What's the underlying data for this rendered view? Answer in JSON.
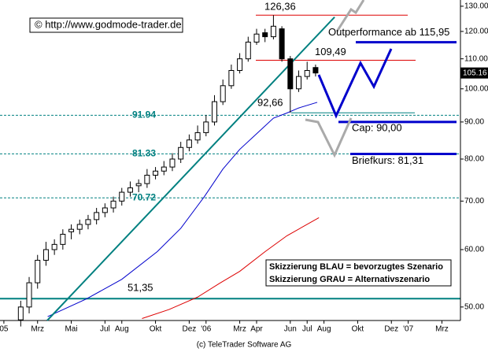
{
  "chart_data": {
    "type": "candlestick",
    "log_scale": true,
    "credit": "© http://www.godmode-trader.de",
    "footer": "(c) TeleTrader Software AG",
    "xlim": [
      -0.23,
      27.1
    ],
    "ylim": [
      47.9,
      132.6
    ],
    "xticks": [
      {
        "value": 0,
        "label": "05"
      },
      {
        "value": 2,
        "label": "Mrz"
      },
      {
        "value": 4,
        "label": "Mai"
      },
      {
        "value": 6,
        "label": "Jul"
      },
      {
        "value": 7,
        "label": "Aug"
      },
      {
        "value": 9,
        "label": "Okt"
      },
      {
        "value": 11,
        "label": "Dez"
      },
      {
        "value": 12,
        "label": "'06"
      },
      {
        "value": 14,
        "label": "Mrz"
      },
      {
        "value": 15,
        "label": "Apr"
      },
      {
        "value": 17,
        "label": "Jun"
      },
      {
        "value": 18,
        "label": "Jul"
      },
      {
        "value": 19,
        "label": "Aug"
      },
      {
        "value": 21,
        "label": "Okt"
      },
      {
        "value": 23,
        "label": "Dez"
      },
      {
        "value": 24,
        "label": "'07"
      },
      {
        "value": 26,
        "label": "Mrz"
      }
    ],
    "yticks": [
      {
        "value": 50,
        "label": "50.00"
      },
      {
        "value": 60,
        "label": "60.00"
      },
      {
        "value": 70,
        "label": "70.00"
      },
      {
        "value": 80,
        "label": "80.00"
      },
      {
        "value": 90,
        "label": "90.00"
      },
      {
        "value": 100,
        "label": "100.00"
      },
      {
        "value": 110,
        "label": "110.00"
      },
      {
        "value": 120,
        "label": "120.00"
      },
      {
        "value": 130,
        "label": "130.00"
      }
    ],
    "x": [
      1,
      1.5,
      2,
      2.5,
      3,
      3.5,
      4,
      4.5,
      5,
      5.5,
      6,
      6.5,
      7,
      7.5,
      8,
      8.5,
      9,
      9.5,
      10,
      10.5,
      11,
      11.5,
      12,
      12.5,
      13,
      13.5,
      14,
      14.5,
      15,
      15.5,
      16,
      16.5,
      17,
      17.5,
      18,
      18.5
    ],
    "open": [
      48,
      50,
      54,
      58,
      60,
      61,
      63.5,
      64,
      65,
      66,
      67.5,
      68.5,
      70,
      72,
      73.5,
      74,
      76,
      77,
      78,
      80,
      83,
      85,
      87,
      90,
      96,
      101,
      106,
      110,
      116,
      119.5,
      118,
      121,
      110,
      100,
      104,
      107
    ],
    "high": [
      51,
      55,
      59,
      61.5,
      62,
      64,
      65,
      66,
      67,
      68.5,
      69.5,
      71,
      73,
      74.5,
      75,
      77.5,
      78,
      79.5,
      81.5,
      84.5,
      86.5,
      89,
      92,
      98,
      103,
      108,
      112,
      118,
      121,
      121,
      126.36,
      122,
      111,
      106,
      109,
      108
    ],
    "low": [
      47,
      49,
      53,
      57,
      59,
      60,
      62,
      63,
      64,
      65,
      66.5,
      67.5,
      69,
      71,
      72,
      73,
      75,
      76,
      77,
      79,
      82,
      84,
      86,
      89,
      95,
      100,
      105,
      109,
      115,
      116,
      117,
      109,
      92.66,
      99,
      103,
      104
    ],
    "close": [
      50,
      54,
      58,
      60,
      61,
      63,
      64,
      65,
      66,
      67.5,
      68.5,
      70,
      72,
      73,
      74,
      76,
      77,
      78,
      80,
      83,
      85,
      87,
      90,
      96,
      101,
      106,
      110,
      116,
      119,
      118,
      122,
      110,
      100,
      104,
      106,
      105.16
    ],
    "last_price": {
      "value": 105.16,
      "label": "105.16"
    },
    "lines": [
      {
        "color": "#0000cc",
        "x": [
          2.6,
          4.9,
          7,
          9.1,
          10.5,
          11.9,
          13,
          14,
          15,
          16,
          16.8,
          17.5,
          18.6
        ],
        "values": [
          48.5,
          51.3,
          54.6,
          59.6,
          64.2,
          71,
          77.5,
          82.5,
          86.7,
          91.1,
          92.6,
          94.1,
          95.8
        ]
      },
      {
        "color": "#dd0000",
        "x": [
          8.2,
          9.8,
          11.5,
          12.8,
          14,
          15.5,
          16.8,
          18.7
        ],
        "values": [
          48.2,
          49.6,
          51.6,
          53.9,
          56,
          59.6,
          62.7,
          66.4
        ]
      },
      {
        "color": "#008080",
        "x": [
          2.57,
          19.63
        ],
        "values": [
          47.9,
          125.6
        ]
      }
    ],
    "dashed_levels": [
      91.94,
      81.33,
      70.72
    ],
    "levels": [
      {
        "value": 126.36,
        "label": "126,36",
        "color": "#dd0000"
      },
      {
        "value": 109.49,
        "label": "109,49",
        "color": "#dd0000"
      },
      {
        "value": 92.66,
        "label": "92,66",
        "color": "#008080"
      },
      {
        "value": 51.35,
        "label": "51,35",
        "color": "#008080"
      },
      {
        "value": 115.95,
        "label": "Outperformance ab 115,95",
        "color": "#0000cc"
      },
      {
        "value": 90,
        "label": "Cap: 90,00",
        "color": "#0000cc"
      },
      {
        "value": 81.31,
        "label": "Briefkurs: 81,31",
        "color": "#0000cc"
      }
    ],
    "legend": [
      "Skizzierung BLAU = bevorzugtes Szenario",
      "Skizzierung GRAU = Alternativszenario"
    ]
  }
}
